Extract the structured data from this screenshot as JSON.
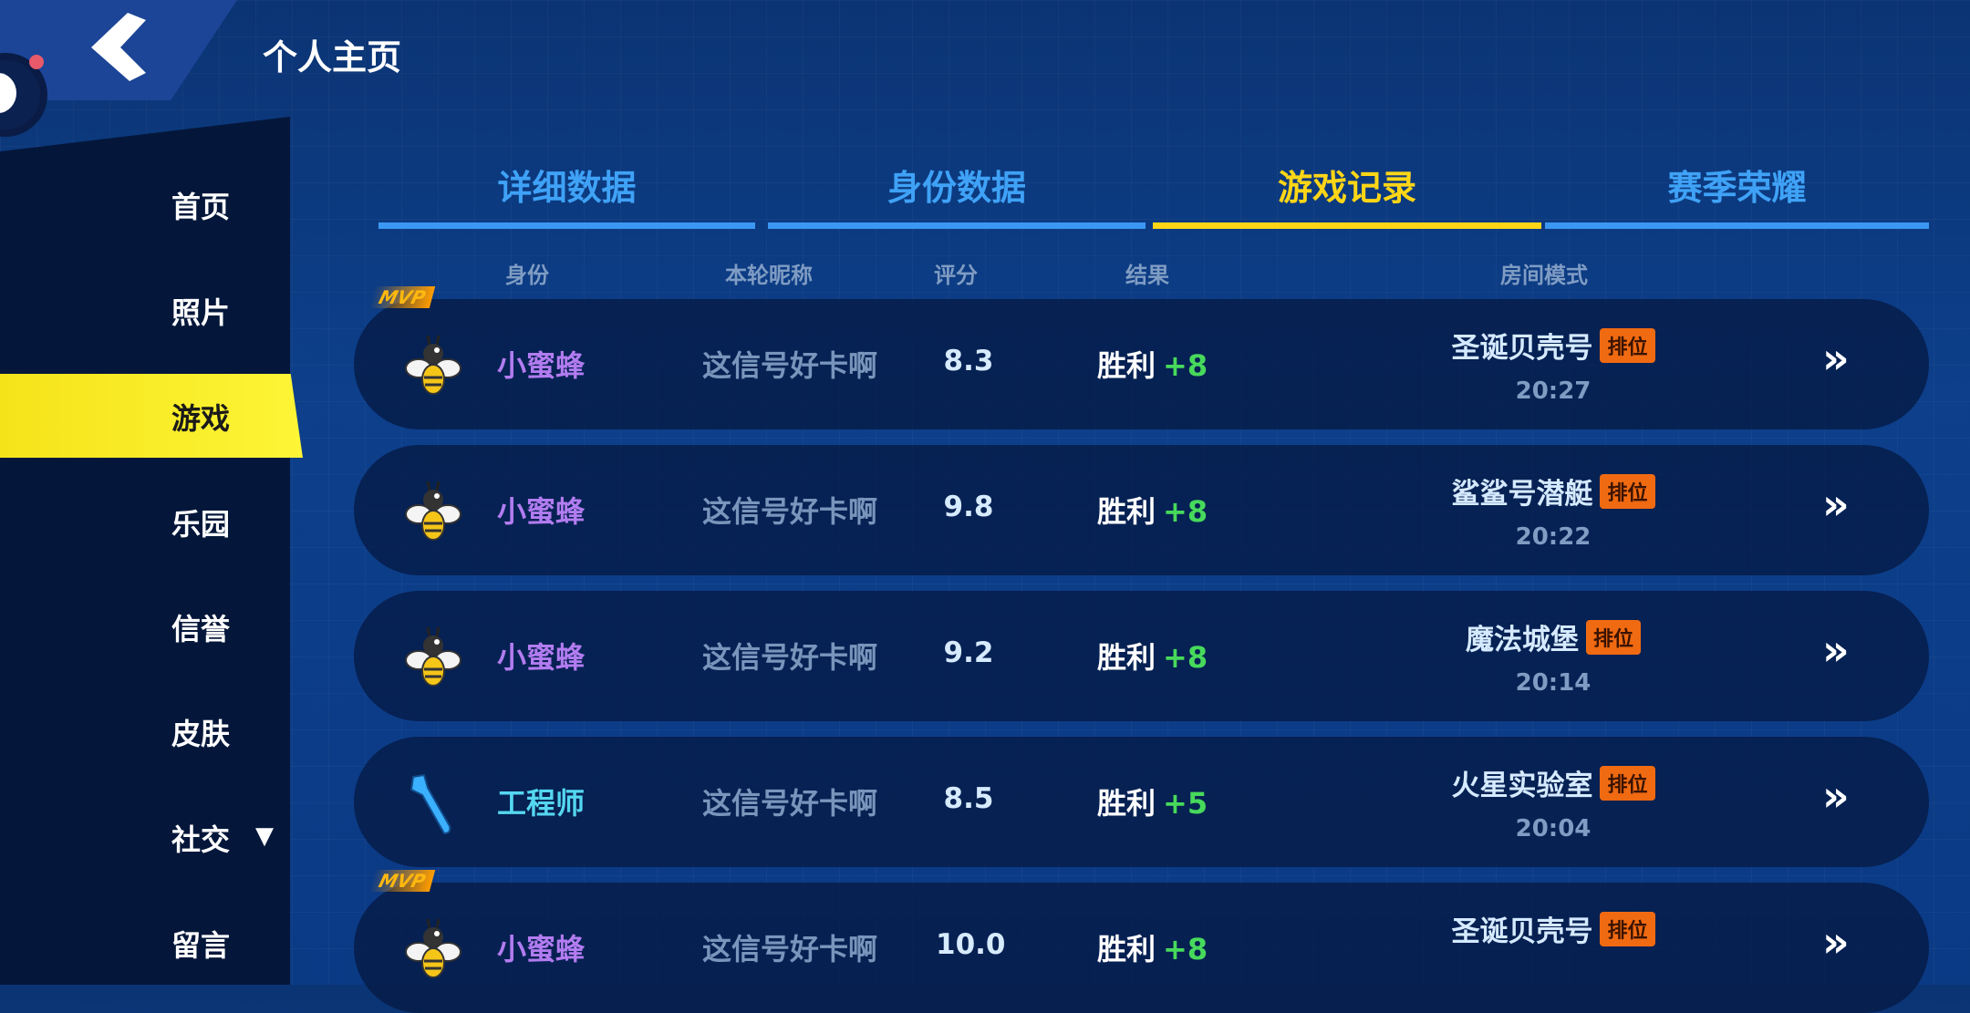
{
  "header": {
    "title": "个人主页"
  },
  "sidebar": {
    "items": [
      {
        "label": "首页"
      },
      {
        "label": "照片"
      },
      {
        "label": "游戏",
        "active": true
      },
      {
        "label": "乐园"
      },
      {
        "label": "信誉"
      },
      {
        "label": "皮肤"
      },
      {
        "label": "社交",
        "expand": "▼"
      },
      {
        "label": "留言"
      }
    ]
  },
  "tabs": [
    {
      "label": "详细数据"
    },
    {
      "label": "身份数据"
    },
    {
      "label": "游戏记录",
      "active": true
    },
    {
      "label": "赛季荣耀"
    }
  ],
  "columns": [
    "身份",
    "本轮昵称",
    "评分",
    "结果",
    "房间模式"
  ],
  "records": [
    {
      "mvp": "MVP",
      "icon": "bee-icon",
      "role": "小蜜蜂",
      "nickname": "这信号好卡啊",
      "score": "8.3",
      "result": "胜利",
      "delta": "+8",
      "room": "圣诞贝壳号",
      "badge": "排位",
      "time": "20:27"
    },
    {
      "mvp": "",
      "icon": "bee-icon",
      "role": "小蜜蜂",
      "nickname": "这信号好卡啊",
      "score": "9.8",
      "result": "胜利",
      "delta": "+8",
      "room": "鲨鲨号潜艇",
      "badge": "排位",
      "time": "20:22"
    },
    {
      "mvp": "",
      "icon": "bee-icon",
      "role": "小蜜蜂",
      "nickname": "这信号好卡啊",
      "score": "9.2",
      "result": "胜利",
      "delta": "+8",
      "room": "魔法城堡",
      "badge": "排位",
      "time": "20:14"
    },
    {
      "mvp": "",
      "icon": "wrench-icon",
      "role": "工程师",
      "nickname": "这信号好卡啊",
      "score": "8.5",
      "result": "胜利",
      "delta": "+5",
      "room": "火星实验室",
      "badge": "排位",
      "time": "20:04"
    },
    {
      "mvp": "MVP",
      "icon": "bee-icon",
      "role": "小蜜蜂",
      "nickname": "这信号好卡啊",
      "score": "10.0",
      "result": "胜利",
      "delta": "+8",
      "room": "圣诞贝壳号",
      "badge": "排位",
      "time": ""
    }
  ],
  "colors": {
    "accent": "#ffd617",
    "tab": "#3fa2f6",
    "win_delta": "#47d95b",
    "badge": "#f06a12",
    "role_bee": "#b27cf0",
    "role_engineer": "#55d7f0"
  }
}
